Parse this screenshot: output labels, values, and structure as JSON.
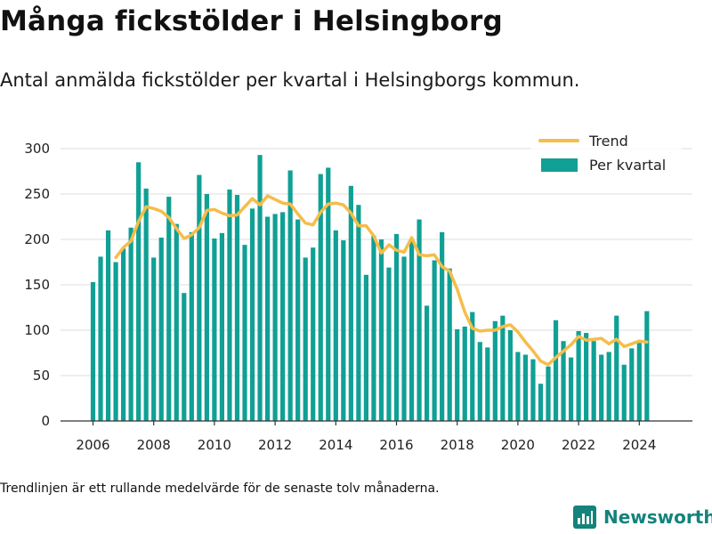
{
  "header": {
    "title": "Många fickstölder i Helsingborg",
    "subtitle": "Antal anmälda fickstölder per kvartal i Helsingborgs kommun."
  },
  "footer": {
    "note": "Trendlinjen är ett rullande medelvärde för de senaste tolv månaderna.",
    "brand": "Newsworthy"
  },
  "colors": {
    "bar": "#10a095",
    "trend": "#f5bd4a",
    "grid": "#dddddd",
    "brand": "#13837c"
  },
  "chart_data": {
    "type": "bar",
    "title": "",
    "xlabel": "",
    "ylabel": "",
    "ylim": [
      0,
      300
    ],
    "yticks": [
      0,
      50,
      100,
      150,
      200,
      250,
      300
    ],
    "xticks": [
      "2006",
      "2008",
      "2010",
      "2012",
      "2014",
      "2016",
      "2018",
      "2020",
      "2022",
      "2024"
    ],
    "grid": true,
    "legend_position": "top-right",
    "x_start_year": 2006,
    "series": [
      {
        "name": "Per kvartal",
        "type": "bar",
        "values": [
          153,
          181,
          210,
          175,
          190,
          213,
          285,
          256,
          180,
          202,
          247,
          217,
          141,
          208,
          271,
          250,
          201,
          207,
          255,
          249,
          194,
          234,
          293,
          225,
          228,
          230,
          276,
          222,
          180,
          191,
          272,
          279,
          210,
          199,
          259,
          238,
          161,
          204,
          200,
          169,
          206,
          181,
          200,
          222,
          127,
          177,
          208,
          168,
          101,
          104,
          120,
          87,
          81,
          110,
          116,
          100,
          76,
          73,
          68,
          41,
          60,
          111,
          88,
          70,
          99,
          97,
          88,
          73,
          76,
          116,
          62,
          80,
          86,
          121
        ]
      },
      {
        "name": "Trend",
        "type": "line",
        "values": [
          null,
          null,
          null,
          180,
          191,
          198,
          220,
          236,
          234,
          231,
          224,
          212,
          201,
          205,
          213,
          232,
          233,
          229,
          226,
          227,
          236,
          245,
          238,
          248,
          244,
          240,
          239,
          228,
          218,
          216,
          230,
          239,
          240,
          238,
          229,
          215,
          215,
          204,
          185,
          194,
          188,
          186,
          202,
          183,
          182,
          183,
          170,
          165,
          145,
          120,
          102,
          99,
          100,
          100,
          104,
          106,
          98,
          87,
          77,
          66,
          62,
          70,
          77,
          84,
          93,
          89,
          90,
          91,
          85,
          90,
          82,
          85,
          88,
          87
        ]
      }
    ]
  }
}
